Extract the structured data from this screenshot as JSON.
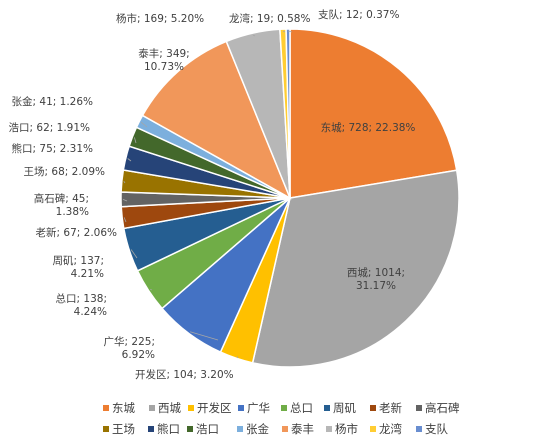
{
  "chart_data": {
    "type": "pie",
    "title": "",
    "categories": [
      "东城",
      "西城",
      "开发区",
      "广华",
      "总口",
      "周矶",
      "老新",
      "高石碑",
      "王场",
      "熊口",
      "浩口",
      "张金",
      "泰丰",
      "杨市",
      "龙湾",
      "支队"
    ],
    "values": [
      728,
      1014,
      104,
      225,
      138,
      137,
      67,
      45,
      68,
      75,
      62,
      41,
      349,
      169,
      19,
      12
    ],
    "percent_labels": [
      "22.38%",
      "31.17%",
      "3.20%",
      "6.92%",
      "4.24%",
      "4.21%",
      "2.06%",
      "1.38%",
      "2.09%",
      "2.31%",
      "1.91%",
      "1.26%",
      "10.73%",
      "5.20%",
      "0.58%",
      "0.37%"
    ],
    "colors": [
      "#ED7D31",
      "#A5A5A5",
      "#FFC000",
      "#4472C4",
      "#70AD47",
      "#255E91",
      "#9E480E",
      "#636363",
      "#997300",
      "#264478",
      "#43682B",
      "#7CAFDD",
      "#F1975A",
      "#B7B7B7",
      "#FFCD33",
      "#698ED0"
    ],
    "label_separator": "; ",
    "legend_position": "bottom"
  }
}
